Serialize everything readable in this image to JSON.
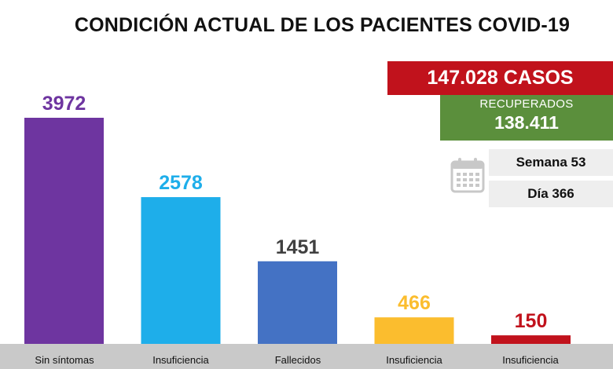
{
  "header": {
    "title": "CONDICIÓN ACTUAL DE LOS PACIENTES COVID-19"
  },
  "summary": {
    "casos": "147.028 CASOS",
    "recuperados_label": "RECUPERADOS",
    "recuperados_value": "138.411",
    "semana": "Semana 53",
    "dia": "Día 366"
  },
  "icons": {
    "calendar": "calendar-icon"
  },
  "colors": {
    "purple": "#6e35a0",
    "cyan": "#1eaeea",
    "blue": "#4472c4",
    "yellow": "#fbbd2e",
    "red": "#c1121c",
    "green": "#5b8f3c"
  },
  "chart_data": {
    "type": "bar",
    "title": "CONDICIÓN ACTUAL DE LOS PACIENTES COVID-19",
    "categories": [
      "Sin síntomas",
      "Insuficiencia",
      "Fallecidos",
      "Insuficiencia",
      "Insuficiencia"
    ],
    "values": [
      3972,
      2578,
      1451,
      466,
      150
    ],
    "value_labels": [
      "3972",
      "2578",
      "1451",
      "466",
      "150"
    ],
    "bar_colors": [
      "#6e35a0",
      "#1eaeea",
      "#4472c4",
      "#fbbd2e",
      "#c1121c"
    ],
    "label_colors": [
      "#6e35a0",
      "#1eaeea",
      "#404040",
      "#fbbd2e",
      "#c1121c"
    ],
    "ylim": [
      0,
      3972
    ],
    "xlabel": "",
    "ylabel": ""
  }
}
